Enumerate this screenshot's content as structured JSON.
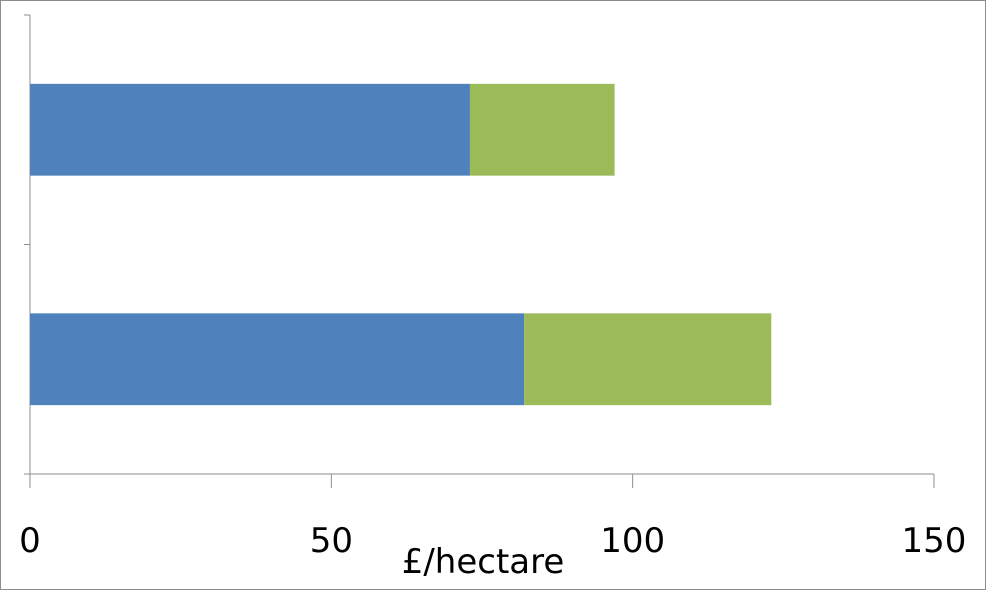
{
  "chart_data": {
    "type": "bar",
    "orientation": "horizontal",
    "stacked": true,
    "categories": [
      "",
      ""
    ],
    "series": [
      {
        "values": [
          82,
          73
        ],
        "color": "#4f81bd"
      },
      {
        "values": [
          41,
          24
        ],
        "color": "#9bbb59"
      }
    ],
    "xlabel": "£/hectare",
    "ylabel": "",
    "xlim": [
      0,
      150
    ],
    "x_ticks": [
      "0",
      "50",
      "100",
      "150"
    ],
    "grid": false,
    "legend": "none"
  }
}
